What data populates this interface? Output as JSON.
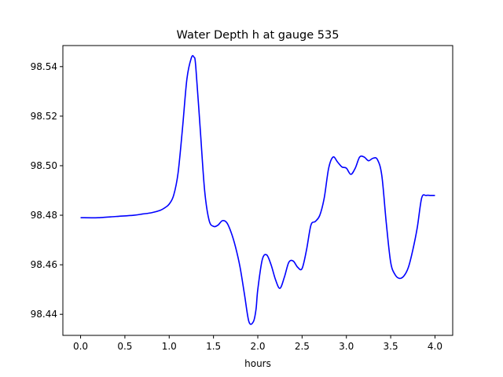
{
  "chart_data": {
    "type": "line",
    "title": "Water Depth h at gauge 535",
    "xlabel": "hours",
    "ylabel": "",
    "xlim": [
      -0.2,
      4.2
    ],
    "ylim": [
      98.4315,
      98.5485
    ],
    "xticks": [
      0.0,
      0.5,
      1.0,
      1.5,
      2.0,
      2.5,
      3.0,
      3.5,
      4.0
    ],
    "xtick_labels": [
      "0.0",
      "0.5",
      "1.0",
      "1.5",
      "2.0",
      "2.5",
      "3.0",
      "3.5",
      "4.0"
    ],
    "yticks": [
      98.44,
      98.46,
      98.48,
      98.5,
      98.52,
      98.54
    ],
    "ytick_labels": [
      "98.44",
      "98.46",
      "98.48",
      "98.50",
      "98.52",
      "98.54"
    ],
    "grid": false,
    "line_color": "#0000ff",
    "series": [
      {
        "x": [
          0.0,
          0.2,
          0.4,
          0.6,
          0.7,
          0.8,
          0.9,
          0.95,
          1.0,
          1.05,
          1.1,
          1.15,
          1.2,
          1.25,
          1.28,
          1.3,
          1.35,
          1.4,
          1.45,
          1.5,
          1.55,
          1.6,
          1.65,
          1.7,
          1.75,
          1.8,
          1.85,
          1.9,
          1.95,
          1.98,
          2.0,
          2.05,
          2.1,
          2.15,
          2.2,
          2.25,
          2.3,
          2.35,
          2.4,
          2.45,
          2.5,
          2.55,
          2.6,
          2.65,
          2.7,
          2.75,
          2.8,
          2.85,
          2.9,
          2.95,
          3.0,
          3.05,
          3.1,
          3.15,
          3.2,
          3.25,
          3.3,
          3.35,
          3.4,
          3.45,
          3.5,
          3.55,
          3.6,
          3.65,
          3.7,
          3.75,
          3.8,
          3.85,
          3.9,
          3.95,
          4.0
        ],
        "y": [
          98.479,
          98.479,
          98.4795,
          98.48,
          98.4805,
          98.481,
          98.482,
          98.483,
          98.4845,
          98.488,
          98.497,
          98.515,
          98.535,
          98.5435,
          98.5438,
          98.54,
          98.515,
          98.49,
          98.478,
          98.4755,
          98.476,
          98.4778,
          98.477,
          98.473,
          98.467,
          98.459,
          98.448,
          98.437,
          98.437,
          98.442,
          98.45,
          98.462,
          98.464,
          98.46,
          98.454,
          98.4505,
          98.455,
          98.461,
          98.4615,
          98.459,
          98.4585,
          98.466,
          98.476,
          98.4775,
          98.48,
          98.487,
          98.499,
          98.5035,
          98.5015,
          98.4995,
          98.499,
          98.4965,
          98.499,
          98.5035,
          98.5035,
          98.502,
          98.503,
          98.5025,
          98.496,
          98.477,
          98.461,
          98.456,
          98.4545,
          98.4555,
          98.459,
          98.466,
          98.475,
          98.487,
          98.488,
          98.488,
          98.488
        ]
      }
    ]
  }
}
